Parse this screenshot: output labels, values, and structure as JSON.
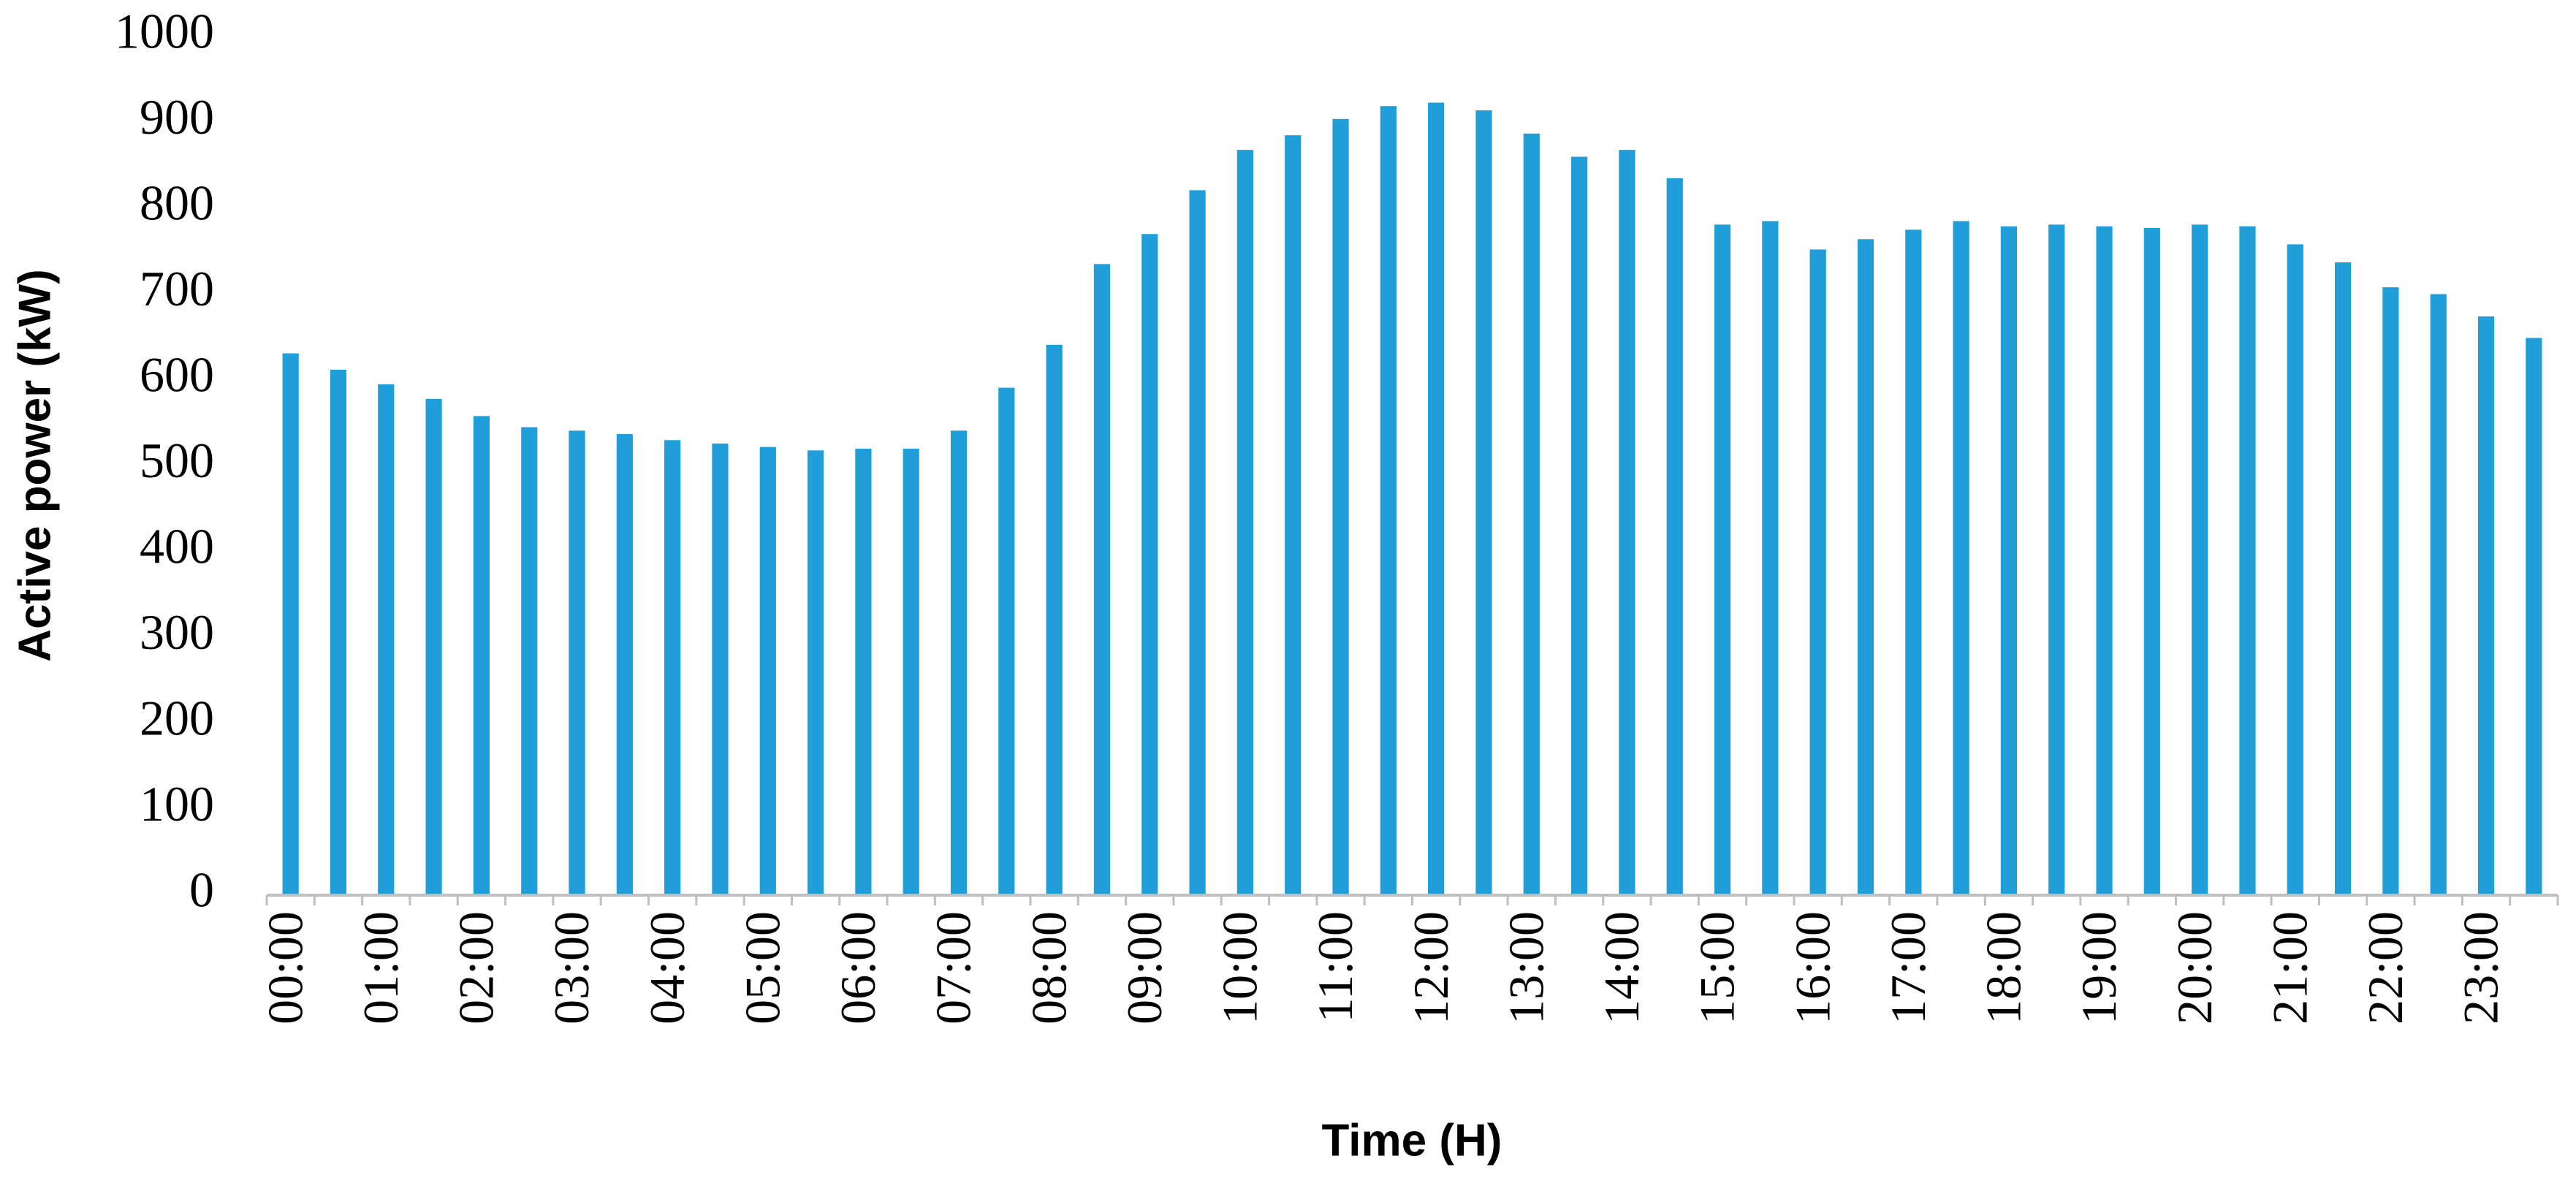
{
  "chart_data": {
    "type": "bar",
    "x_label": "Time (H)",
    "y_label": "Active power (kW)",
    "categories": [
      "00:00",
      null,
      "01:00",
      null,
      "02:00",
      null,
      "03:00",
      null,
      "04:00",
      null,
      "05:00",
      null,
      "06:00",
      null,
      "07:00",
      null,
      "08:00",
      null,
      "09:00",
      null,
      "10:00",
      null,
      "11:00",
      null,
      "12:00",
      null,
      "13:00",
      null,
      "14:00",
      null,
      "15:00",
      null,
      "16:00",
      null,
      "17:00",
      null,
      "18:00",
      null,
      "19:00",
      null,
      "20:00",
      null,
      "21:00",
      null,
      "22:00",
      null,
      "23:00",
      null
    ],
    "values": [
      631,
      612,
      595,
      578,
      558,
      545,
      541,
      537,
      530,
      526,
      522,
      518,
      520,
      520,
      541,
      591,
      641,
      735,
      770,
      821,
      868,
      885,
      904,
      919,
      923,
      914,
      887,
      860,
      868,
      835,
      781,
      785,
      752,
      764,
      775,
      785,
      779,
      781,
      779,
      777,
      781,
      779,
      758,
      737,
      708,
      700,
      674,
      649
    ],
    "color": "#1f9ed9",
    "ylim": [
      0,
      1000
    ],
    "yticks": [
      0,
      100,
      200,
      300,
      400,
      500,
      600,
      700,
      800,
      900,
      1000
    ],
    "grid": false
  }
}
